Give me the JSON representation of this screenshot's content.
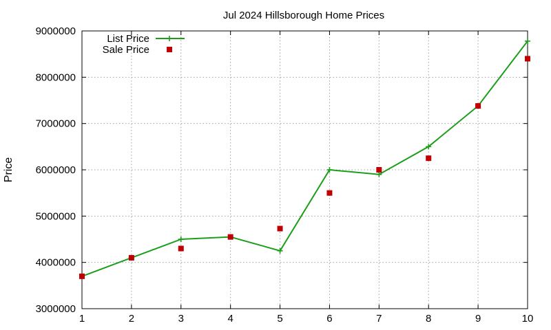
{
  "chart_data": {
    "type": "line",
    "title": "Jul 2024 Hillsborough Home Prices",
    "xlabel": "",
    "ylabel": "Price",
    "xlim": [
      1,
      10
    ],
    "ylim": [
      3000000,
      9000000
    ],
    "xticks": [
      "1",
      "2",
      "3",
      "4",
      "5",
      "6",
      "7",
      "8",
      "9",
      "10"
    ],
    "yticks": [
      "3000000",
      "4000000",
      "5000000",
      "6000000",
      "7000000",
      "8000000",
      "9000000"
    ],
    "grid": true,
    "legend_position": "top-left",
    "x": [
      1,
      2,
      3,
      4,
      5,
      6,
      7,
      8,
      9,
      10
    ],
    "series": [
      {
        "name": "List Price",
        "style": "line-with-plus-markers",
        "color": "#1a9e1a",
        "values": [
          3700000,
          4100000,
          4500000,
          4550000,
          4250000,
          6000000,
          5900000,
          6500000,
          7380000,
          8780000
        ]
      },
      {
        "name": "Sale Price",
        "style": "square-markers",
        "color": "#c00000",
        "values": [
          3700000,
          4100000,
          4300000,
          4550000,
          4730000,
          5500000,
          6000000,
          6250000,
          7380000,
          8400000
        ]
      }
    ]
  }
}
